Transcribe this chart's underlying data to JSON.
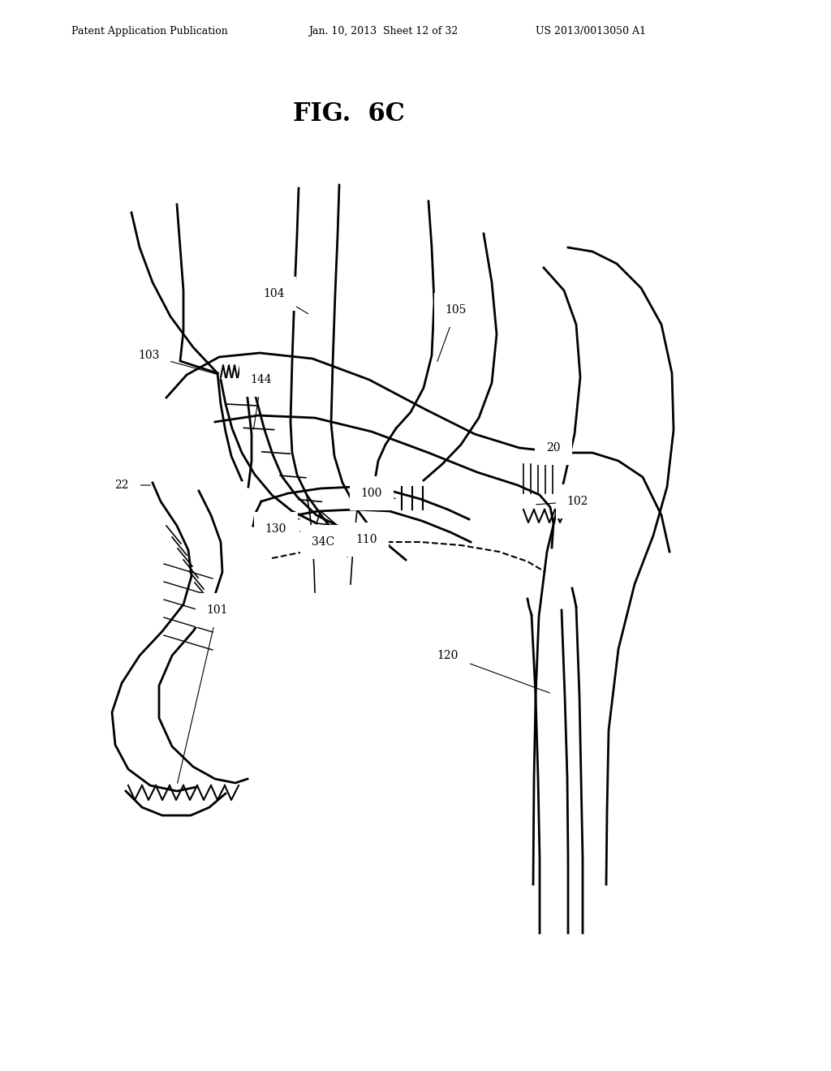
{
  "header_left": "Patent Application Publication",
  "header_center": "Jan. 10, 2013  Sheet 12 of 32",
  "header_right": "US 2013/0013050 A1",
  "fig_title": "FIG.  6C",
  "bg_color": "#ffffff",
  "line_color": "#000000"
}
